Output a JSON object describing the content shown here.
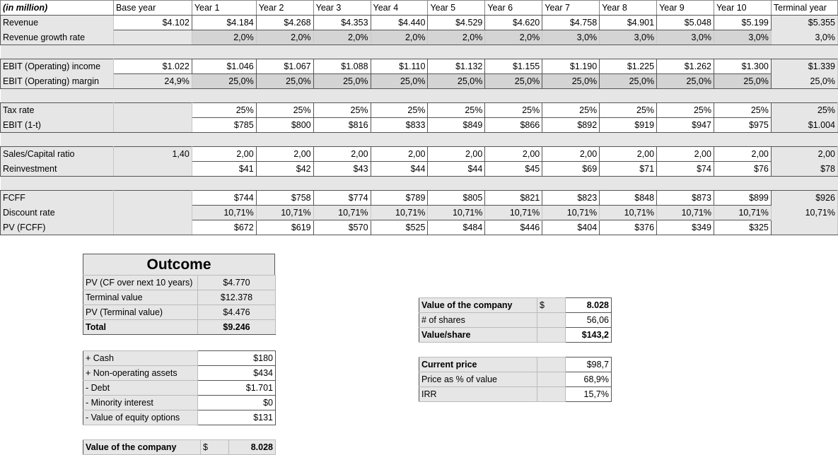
{
  "header": {
    "unit_label": "(in million)",
    "columns": [
      "Base year",
      "Year 1",
      "Year 2",
      "Year 3",
      "Year 4",
      "Year 5",
      "Year 6",
      "Year 7",
      "Year 8",
      "Year 9",
      "Year 10",
      "Terminal year"
    ]
  },
  "rows": {
    "revenue": {
      "label": "Revenue",
      "values": [
        "$4.102",
        "$4.184",
        "$4.268",
        "$4.353",
        "$4.440",
        "$4.529",
        "$4.620",
        "$4.758",
        "$4.901",
        "$5.048",
        "$5.199",
        "$5.355"
      ]
    },
    "revenue_growth": {
      "label": "Revenue growth rate",
      "values": [
        "",
        "2,0%",
        "2,0%",
        "2,0%",
        "2,0%",
        "2,0%",
        "2,0%",
        "3,0%",
        "3,0%",
        "3,0%",
        "3,0%",
        "3,0%"
      ]
    },
    "ebit": {
      "label": "EBIT (Operating) income",
      "values": [
        "$1.022",
        "$1.046",
        "$1.067",
        "$1.088",
        "$1.110",
        "$1.132",
        "$1.155",
        "$1.190",
        "$1.225",
        "$1.262",
        "$1.300",
        "$1.339"
      ]
    },
    "ebit_margin": {
      "label": "EBIT (Operating) margin",
      "values": [
        "24,9%",
        "25,0%",
        "25,0%",
        "25,0%",
        "25,0%",
        "25,0%",
        "25,0%",
        "25,0%",
        "25,0%",
        "25,0%",
        "25,0%",
        "25,0%"
      ]
    },
    "tax_rate": {
      "label": "Tax rate",
      "values": [
        "",
        "25%",
        "25%",
        "25%",
        "25%",
        "25%",
        "25%",
        "25%",
        "25%",
        "25%",
        "25%",
        "25%"
      ]
    },
    "ebit_1t": {
      "label": "EBIT (1-t)",
      "values": [
        "",
        "$785",
        "$800",
        "$816",
        "$833",
        "$849",
        "$866",
        "$892",
        "$919",
        "$947",
        "$975",
        "$1.004"
      ]
    },
    "sales_capital": {
      "label": "Sales/Capital ratio",
      "values": [
        "1,40",
        "2,00",
        "2,00",
        "2,00",
        "2,00",
        "2,00",
        "2,00",
        "2,00",
        "2,00",
        "2,00",
        "2,00",
        "2,00"
      ]
    },
    "reinvestment": {
      "label": "Reinvestment",
      "values": [
        "",
        "$41",
        "$42",
        "$43",
        "$44",
        "$44",
        "$45",
        "$69",
        "$71",
        "$74",
        "$76",
        "$78"
      ]
    },
    "fcff": {
      "label": "FCFF",
      "values": [
        "",
        "$744",
        "$758",
        "$774",
        "$789",
        "$805",
        "$821",
        "$823",
        "$848",
        "$873",
        "$899",
        "$926"
      ]
    },
    "discount_rate": {
      "label": "Discount rate",
      "values": [
        "",
        "10,71%",
        "10,71%",
        "10,71%",
        "10,71%",
        "10,71%",
        "10,71%",
        "10,71%",
        "10,71%",
        "10,71%",
        "10,71%",
        "10,71%"
      ]
    },
    "pv_fcff": {
      "label": "PV (FCFF)",
      "values": [
        "",
        "$672",
        "$619",
        "$570",
        "$525",
        "$484",
        "$446",
        "$404",
        "$376",
        "$349",
        "$325",
        ""
      ]
    }
  },
  "outcome": {
    "title": "Outcome",
    "pv_cf_label": "PV (CF over next 10 years)",
    "pv_cf_value": "$4.770",
    "terminal_label": "Terminal value",
    "terminal_value": "$12.378",
    "pv_terminal_label": "PV (Terminal value)",
    "pv_terminal_value": "$4.476",
    "total_label": "Total",
    "total_value": "$9.246"
  },
  "adjustments": {
    "cash_label": "+ Cash",
    "cash_value": "$180",
    "nonop_label": "+ Non-operating assets",
    "nonop_value": "$434",
    "debt_label": "- Debt",
    "debt_value": "$1.701",
    "minority_label": "- Minority interest",
    "minority_value": "$0",
    "options_label": "- Value of equity options",
    "options_value": "$131"
  },
  "company_value_bottom": {
    "label": "Value of the company",
    "currency": "$",
    "value": "8.028"
  },
  "valuation": {
    "company_label": "Value of the company",
    "currency": "$",
    "company_value": "8.028",
    "shares_label": "# of shares",
    "shares_value": "56,06",
    "per_share_label": "Value/share",
    "per_share_value": "$143,2"
  },
  "price": {
    "current_label": "Current price",
    "current_value": "$98,7",
    "pct_label": "Price as % of value",
    "pct_value": "68,9%",
    "irr_label": "IRR",
    "irr_value": "15,7%"
  }
}
